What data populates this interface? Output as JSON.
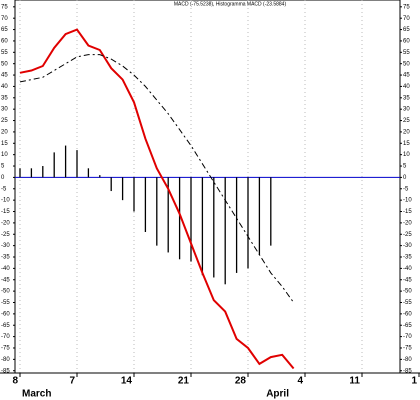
{
  "chart_data": {
    "type": "macd",
    "title": "MACD (-75.5238), Histogramma MACD (-23.5884)",
    "categories": [
      "8",
      null,
      null,
      null,
      null,
      "7",
      null,
      null,
      null,
      null,
      "14",
      null,
      null,
      null,
      null,
      "21",
      null,
      null,
      null,
      null,
      "28",
      null,
      null,
      null,
      null,
      "4",
      null,
      null,
      null,
      null,
      "11",
      null,
      null,
      null,
      null,
      "1"
    ],
    "month_labels": [
      {
        "label": "March",
        "start": 0
      },
      {
        "label": "April",
        "start": 23
      }
    ],
    "series": [
      {
        "color": "#e00000",
        "style": "solid",
        "values": [
          46,
          47,
          49,
          57,
          63,
          65,
          58,
          56,
          48,
          43,
          33,
          17,
          4,
          -5,
          -16,
          -29,
          -42,
          -54,
          -59,
          -71,
          -75,
          -82,
          -79,
          -78,
          -84,
          null,
          null,
          null,
          null,
          null,
          null,
          null,
          null,
          null,
          null,
          null
        ]
      },
      {
        "color": "#000000",
        "style": "dashed",
        "values": [
          42,
          43,
          44,
          47,
          50,
          53,
          54,
          54,
          52,
          49,
          45,
          40,
          34,
          28,
          21,
          14,
          6,
          -2,
          -10,
          -18,
          -26,
          -34,
          -42,
          -48,
          -55,
          null,
          null,
          null,
          null,
          null,
          null,
          null,
          null,
          null,
          null,
          null
        ]
      }
    ],
    "histogram": {
      "color": "#000000",
      "values": [
        4,
        4,
        5,
        11,
        14,
        12,
        4,
        1,
        -6,
        -10,
        -15,
        -24,
        -30,
        -33,
        -36,
        -37,
        -43,
        -44,
        -47,
        -42,
        -40,
        -34,
        -30,
        null,
        null,
        null,
        null,
        null,
        null,
        null,
        null,
        null,
        null,
        null,
        null,
        null
      ]
    },
    "zero_line_color": "#0000cc",
    "ylim": [
      -86,
      78
    ],
    "yticks": [
      -85,
      -80,
      -75,
      -70,
      -65,
      -60,
      -55,
      -50,
      -45,
      -40,
      -35,
      -30,
      -25,
      -20,
      -15,
      -10,
      -5,
      0,
      5,
      10,
      15,
      20,
      25,
      30,
      35,
      40,
      45,
      50,
      55,
      60,
      65,
      70,
      75
    ],
    "grid": true
  }
}
